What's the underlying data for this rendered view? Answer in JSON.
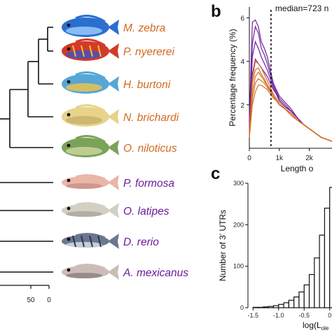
{
  "colors": {
    "orange": "#d2691e",
    "purple": "#6a1b9a",
    "line": "#111111"
  },
  "tree": {
    "scale_ticks": [
      "50",
      "0"
    ],
    "species": [
      {
        "name": "M. zebra",
        "group": "orange",
        "icon": "cichlid-fish-icon"
      },
      {
        "name": "P. nyererei",
        "group": "orange",
        "icon": "cichlid-fish-icon"
      },
      {
        "name": "H. burtoni",
        "group": "orange",
        "icon": "cichlid-fish-icon"
      },
      {
        "name": "N. brichardi",
        "group": "orange",
        "icon": "cichlid-fish-icon"
      },
      {
        "name": "O. niloticus",
        "group": "orange",
        "icon": "tilapia-fish-icon"
      },
      {
        "name": "P. formosa",
        "group": "purple",
        "icon": "molly-fish-icon"
      },
      {
        "name": "O. latipes",
        "group": "purple",
        "icon": "medaka-fish-icon"
      },
      {
        "name": "D. rerio",
        "group": "purple",
        "icon": "zebrafish-icon"
      },
      {
        "name": "A. mexicanus",
        "group": "purple",
        "icon": "cavefish-icon"
      }
    ]
  },
  "panels": {
    "b_label": "b",
    "c_label": "c"
  },
  "chart_data": [
    {
      "type": "line",
      "panel": "b",
      "ylabel": "Percentage frequency (%)",
      "xlabel": "Length o",
      "annotation": "median=723 n",
      "median": 723,
      "xlim": [
        0,
        2900
      ],
      "ylim": [
        0,
        6.5
      ],
      "x_ticks": [
        {
          "v": 0,
          "label": "0"
        },
        {
          "v": 1000,
          "label": "1k"
        },
        {
          "v": 2000,
          "label": "2k"
        }
      ],
      "y_ticks": [
        {
          "v": 2,
          "label": "2"
        },
        {
          "v": 4,
          "label": "4"
        },
        {
          "v": 6,
          "label": "6"
        }
      ],
      "x": [
        0,
        100,
        200,
        300,
        400,
        500,
        600,
        700,
        800,
        900,
        1000,
        1200,
        1400,
        1600,
        1800,
        2000,
        2200,
        2400,
        2600,
        2800
      ],
      "series": [
        {
          "group": "purple",
          "values": [
            1.2,
            5.8,
            5.9,
            5.6,
            4.9,
            4.6,
            4.2,
            3.6,
            3.0,
            2.7,
            2.4,
            2.1,
            1.8,
            1.4,
            1.1,
            0.9,
            0.7,
            0.5,
            0.4,
            0.3
          ]
        },
        {
          "group": "purple",
          "values": [
            1.0,
            4.8,
            5.6,
            5.3,
            4.6,
            4.3,
            3.9,
            3.4,
            2.9,
            2.6,
            2.3,
            2.0,
            1.7,
            1.4,
            1.1,
            0.9,
            0.7,
            0.5,
            0.4,
            0.3
          ]
        },
        {
          "group": "purple",
          "values": [
            0.9,
            4.2,
            4.9,
            4.6,
            4.2,
            3.9,
            3.6,
            3.2,
            2.8,
            2.5,
            2.2,
            1.9,
            1.7,
            1.4,
            1.1,
            0.9,
            0.7,
            0.5,
            0.4,
            0.3
          ]
        },
        {
          "group": "purple",
          "values": [
            0.8,
            3.4,
            4.1,
            3.9,
            3.7,
            3.5,
            3.3,
            3.0,
            2.7,
            2.5,
            2.2,
            1.9,
            1.7,
            1.4,
            1.1,
            0.9,
            0.7,
            0.5,
            0.4,
            0.3
          ]
        },
        {
          "group": "orange",
          "values": [
            0.8,
            3.2,
            4.0,
            3.9,
            3.7,
            3.4,
            3.1,
            2.8,
            2.5,
            2.3,
            2.1,
            1.8,
            1.6,
            1.3,
            1.1,
            0.9,
            0.7,
            0.5,
            0.4,
            0.3
          ]
        },
        {
          "group": "orange",
          "values": [
            0.7,
            3.0,
            3.6,
            3.7,
            3.4,
            3.2,
            2.9,
            2.7,
            2.4,
            2.2,
            2.0,
            1.8,
            1.5,
            1.3,
            1.1,
            0.9,
            0.7,
            0.5,
            0.4,
            0.3
          ]
        },
        {
          "group": "orange",
          "values": [
            0.6,
            2.6,
            3.3,
            3.5,
            3.3,
            3.1,
            2.9,
            2.6,
            2.4,
            2.2,
            2.0,
            1.8,
            1.6,
            1.3,
            1.1,
            0.9,
            0.7,
            0.5,
            0.4,
            0.3
          ]
        },
        {
          "group": "orange",
          "values": [
            0.6,
            2.3,
            3.0,
            3.2,
            3.1,
            3.0,
            2.8,
            2.6,
            2.4,
            2.2,
            2.0,
            1.8,
            1.6,
            1.3,
            1.1,
            0.9,
            0.7,
            0.5,
            0.4,
            0.3
          ]
        },
        {
          "group": "orange",
          "values": [
            0.5,
            2.0,
            2.6,
            2.9,
            2.9,
            2.8,
            2.7,
            2.5,
            2.3,
            2.2,
            2.0,
            1.8,
            1.6,
            1.3,
            1.1,
            0.9,
            0.7,
            0.5,
            0.4,
            0.3
          ]
        }
      ]
    },
    {
      "type": "bar",
      "panel": "c",
      "ylabel": "Number of 3' UTRs",
      "xlabel": "log(L",
      "xlabel_sub": "ole",
      "xlim": [
        -1.6,
        0.1
      ],
      "ylim": [
        0,
        300
      ],
      "x_ticks": [
        {
          "v": -1.5,
          "label": "-1.5"
        },
        {
          "v": -1.0,
          "label": "-1.0"
        },
        {
          "v": -0.5,
          "label": "-0.5"
        },
        {
          "v": 0,
          "label": "0"
        }
      ],
      "y_ticks": [
        {
          "v": 0,
          "label": "0"
        },
        {
          "v": 100,
          "label": "100"
        },
        {
          "v": 200,
          "label": "200"
        },
        {
          "v": 300,
          "label": "300"
        }
      ],
      "bin_width": 0.1,
      "bin_starts": [
        -1.5,
        -1.4,
        -1.3,
        -1.2,
        -1.1,
        -1.0,
        -0.9,
        -0.8,
        -0.7,
        -0.6,
        -0.5,
        -0.4,
        -0.3,
        -0.2,
        -0.1,
        0.0
      ],
      "values": [
        1,
        1,
        2,
        3,
        5,
        8,
        12,
        18,
        26,
        38,
        55,
        80,
        120,
        175,
        240,
        290
      ]
    }
  ]
}
